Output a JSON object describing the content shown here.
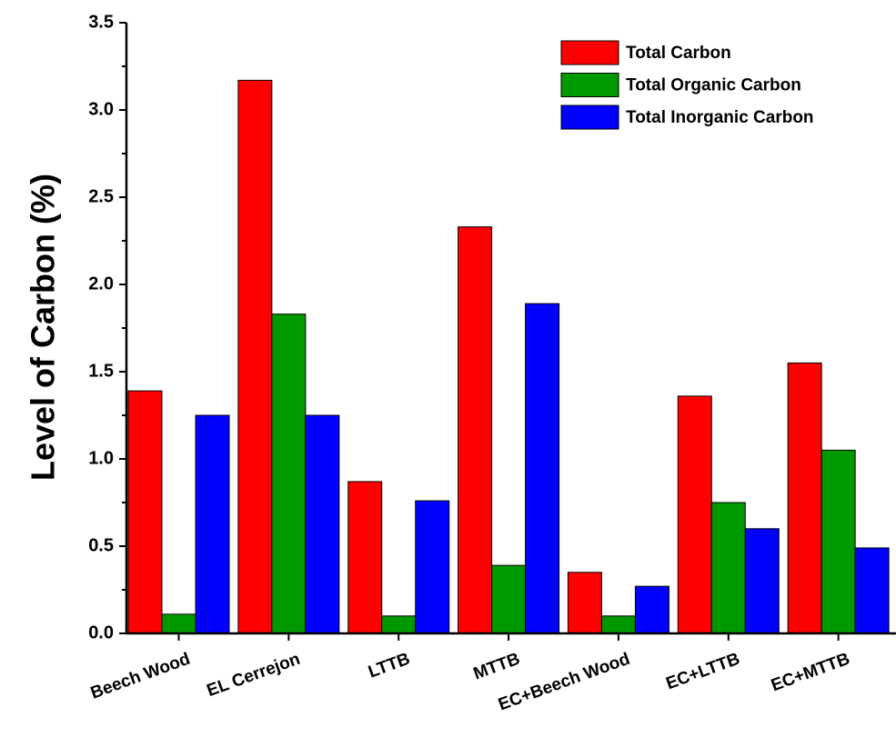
{
  "chart_data": {
    "type": "bar",
    "y_label": "Level of Carbon (%)",
    "categories": [
      "Beech Wood",
      "EL Cerrejon",
      "LTTB",
      "MTTB",
      "EC+Beech Wood",
      "EC+LTTB",
      "EC+MTTB"
    ],
    "series": [
      {
        "name": "Total Carbon",
        "color": "#ff0000",
        "values": [
          1.39,
          3.17,
          0.87,
          2.33,
          0.35,
          1.36,
          1.55
        ]
      },
      {
        "name": "Total Organic Carbon",
        "color": "#009900",
        "values": [
          0.11,
          1.83,
          0.1,
          0.39,
          0.1,
          0.75,
          1.05
        ]
      },
      {
        "name": "Total Inorganic Carbon",
        "color": "#0000ff",
        "values": [
          1.25,
          1.25,
          0.76,
          1.89,
          0.27,
          0.6,
          0.49
        ]
      }
    ],
    "ylim": [
      0,
      3.5
    ],
    "yticks": [
      {
        "value": 0,
        "label": "0.0"
      },
      {
        "value": 0.5,
        "label": "0.5"
      },
      {
        "value": 1,
        "label": "1.0"
      },
      {
        "value": 1.5,
        "label": "1.5"
      },
      {
        "value": 2,
        "label": "2.0"
      },
      {
        "value": 2.5,
        "label": "2.5"
      },
      {
        "value": 3,
        "label": "3.0"
      },
      {
        "value": 3.5,
        "label": "3.5"
      }
    ],
    "legend": "upper right"
  }
}
